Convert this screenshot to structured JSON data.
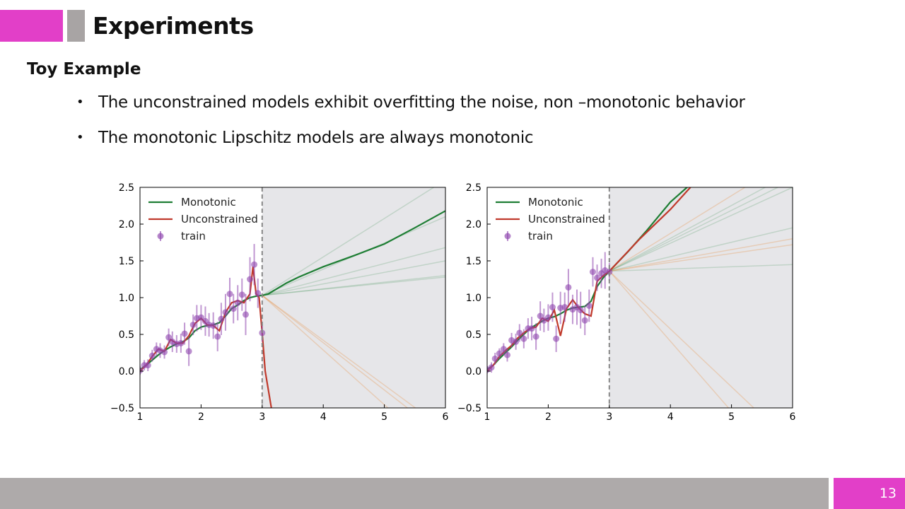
{
  "slide": {
    "title": "Experiments",
    "subtitle": "Toy Example",
    "bullets": [
      "The unconstrained models exhibit overfitting the noise, non –monotonic behavior",
      "The monotonic Lipschitz models are always monotonic"
    ],
    "page_number": "13",
    "colors": {
      "accent": "#e23fc8",
      "accent_secondary": "#a8a4a4",
      "footer": "#aeaaaa"
    }
  },
  "chart_data": [
    {
      "type": "line",
      "title": "",
      "xlabel": "",
      "ylabel": "",
      "xlim": [
        1,
        6
      ],
      "ylim": [
        -0.5,
        2.5
      ],
      "xticks": [
        "1",
        "2",
        "3",
        "4",
        "5",
        "6"
      ],
      "yticks": [
        "−0.5",
        "0.0",
        "0.5",
        "1.0",
        "1.5",
        "2.0",
        "2.5"
      ],
      "extrapolation_region": {
        "x_start": 3,
        "x_end": 6,
        "shaded": true,
        "boundary_line": "dashed"
      },
      "legend": {
        "placement": "top-left",
        "entries": [
          "Monotonic",
          "Unconstrained",
          "train"
        ]
      },
      "series": [
        {
          "name": "Monotonic",
          "color": "#1e7e34",
          "x": [
            1.0,
            1.1,
            1.2,
            1.3,
            1.4,
            1.5,
            1.6,
            1.7,
            1.8,
            1.9,
            2.0,
            2.1,
            2.2,
            2.3,
            2.4,
            2.5,
            2.6,
            2.7,
            2.8,
            2.9,
            3.0,
            3.1,
            3.2,
            3.4,
            3.6,
            4.0,
            4.5,
            5.0,
            5.5,
            6.0
          ],
          "y": [
            0.02,
            0.08,
            0.15,
            0.22,
            0.28,
            0.33,
            0.37,
            0.4,
            0.45,
            0.55,
            0.6,
            0.62,
            0.63,
            0.66,
            0.75,
            0.85,
            0.9,
            0.96,
            1.0,
            1.02,
            1.03,
            1.05,
            1.1,
            1.2,
            1.28,
            1.42,
            1.57,
            1.73,
            1.95,
            2.18
          ]
        },
        {
          "name": "Unconstrained",
          "color": "#c0392b",
          "x": [
            1.0,
            1.1,
            1.2,
            1.3,
            1.4,
            1.5,
            1.6,
            1.7,
            1.8,
            1.9,
            2.0,
            2.1,
            2.2,
            2.3,
            2.4,
            2.5,
            2.6,
            2.7,
            2.8,
            2.85,
            2.9,
            2.95,
            3.0,
            3.05,
            3.15
          ],
          "y": [
            0.0,
            0.08,
            0.2,
            0.3,
            0.27,
            0.43,
            0.38,
            0.38,
            0.48,
            0.65,
            0.72,
            0.63,
            0.62,
            0.55,
            0.8,
            0.93,
            0.96,
            0.93,
            1.05,
            1.42,
            1.05,
            1.0,
            0.52,
            0.0,
            -0.5
          ]
        },
        {
          "name": "train",
          "color": "#8e44ad",
          "x": [
            1.0,
            1.07,
            1.13,
            1.2,
            1.27,
            1.33,
            1.4,
            1.47,
            1.53,
            1.6,
            1.67,
            1.73,
            1.8,
            1.87,
            1.93,
            2.0,
            2.07,
            2.13,
            2.2,
            2.27,
            2.33,
            2.4,
            2.47,
            2.53,
            2.6,
            2.67,
            2.73,
            2.8,
            2.87,
            2.93,
            3.0
          ],
          "y": [
            0.01,
            0.08,
            0.08,
            0.21,
            0.3,
            0.28,
            0.26,
            0.46,
            0.4,
            0.37,
            0.38,
            0.51,
            0.27,
            0.63,
            0.72,
            0.73,
            0.68,
            0.63,
            0.62,
            0.47,
            0.71,
            0.8,
            1.05,
            0.85,
            0.93,
            1.04,
            0.77,
            1.25,
            1.45,
            1.06,
            0.52
          ],
          "error": [
            0.06,
            0.07,
            0.08,
            0.08,
            0.09,
            0.1,
            0.09,
            0.12,
            0.14,
            0.12,
            0.13,
            0.15,
            0.2,
            0.14,
            0.18,
            0.17,
            0.2,
            0.16,
            0.18,
            0.2,
            0.22,
            0.25,
            0.22,
            0.2,
            0.24,
            0.22,
            0.28,
            0.3,
            0.28,
            0.2,
            0.12
          ]
        }
      ]
    },
    {
      "type": "line",
      "title": "",
      "xlabel": "",
      "ylabel": "",
      "xlim": [
        1,
        6
      ],
      "ylim": [
        -0.5,
        2.5
      ],
      "xticks": [
        "1",
        "2",
        "3",
        "4",
        "5",
        "6"
      ],
      "yticks": [
        "−0.5",
        "0.0",
        "0.5",
        "1.0",
        "1.5",
        "2.0",
        "2.5"
      ],
      "extrapolation_region": {
        "x_start": 3,
        "x_end": 6,
        "shaded": true,
        "boundary_line": "dashed"
      },
      "legend": {
        "placement": "top-left",
        "entries": [
          "Monotonic",
          "Unconstrained",
          "train"
        ]
      },
      "series": [
        {
          "name": "Monotonic",
          "color": "#1e7e34",
          "x": [
            1.0,
            1.1,
            1.2,
            1.3,
            1.4,
            1.5,
            1.6,
            1.7,
            1.8,
            1.9,
            2.0,
            2.1,
            2.2,
            2.3,
            2.4,
            2.5,
            2.6,
            2.7,
            2.8,
            2.9,
            3.0,
            3.3,
            3.6,
            4.0,
            4.3
          ],
          "y": [
            0.02,
            0.08,
            0.17,
            0.25,
            0.33,
            0.42,
            0.5,
            0.58,
            0.63,
            0.68,
            0.72,
            0.74,
            0.78,
            0.83,
            0.86,
            0.87,
            0.88,
            0.95,
            1.15,
            1.27,
            1.36,
            1.62,
            1.9,
            2.3,
            2.52
          ]
        },
        {
          "name": "Unconstrained",
          "color": "#c0392b",
          "x": [
            1.0,
            1.1,
            1.2,
            1.3,
            1.4,
            1.5,
            1.6,
            1.7,
            1.8,
            1.9,
            2.0,
            2.1,
            2.2,
            2.3,
            2.4,
            2.5,
            2.6,
            2.7,
            2.8,
            2.9,
            3.0,
            3.5,
            4.0,
            4.35
          ],
          "y": [
            0.0,
            0.08,
            0.2,
            0.28,
            0.35,
            0.45,
            0.52,
            0.58,
            0.6,
            0.72,
            0.68,
            0.83,
            0.48,
            0.85,
            0.97,
            0.86,
            0.78,
            0.75,
            1.22,
            1.3,
            1.36,
            1.8,
            2.2,
            2.52
          ]
        },
        {
          "name": "train",
          "color": "#8e44ad",
          "x": [
            1.0,
            1.07,
            1.13,
            1.2,
            1.27,
            1.33,
            1.4,
            1.47,
            1.53,
            1.6,
            1.67,
            1.73,
            1.8,
            1.87,
            1.93,
            2.0,
            2.07,
            2.13,
            2.2,
            2.27,
            2.33,
            2.4,
            2.47,
            2.53,
            2.6,
            2.67,
            2.73,
            2.8,
            2.87,
            2.93,
            3.0
          ],
          "y": [
            0.02,
            0.05,
            0.17,
            0.24,
            0.3,
            0.22,
            0.42,
            0.4,
            0.52,
            0.44,
            0.58,
            0.58,
            0.47,
            0.75,
            0.69,
            0.73,
            0.87,
            0.44,
            0.86,
            0.87,
            1.14,
            0.84,
            0.87,
            0.83,
            0.69,
            0.89,
            1.35,
            1.27,
            1.33,
            1.37,
            1.35
          ],
          "error": [
            0.05,
            0.07,
            0.08,
            0.07,
            0.08,
            0.09,
            0.1,
            0.11,
            0.12,
            0.13,
            0.14,
            0.16,
            0.18,
            0.2,
            0.16,
            0.18,
            0.2,
            0.18,
            0.22,
            0.2,
            0.25,
            0.2,
            0.24,
            0.25,
            0.2,
            0.22,
            0.2,
            0.18,
            0.2,
            0.25,
            0.12
          ]
        }
      ]
    }
  ]
}
